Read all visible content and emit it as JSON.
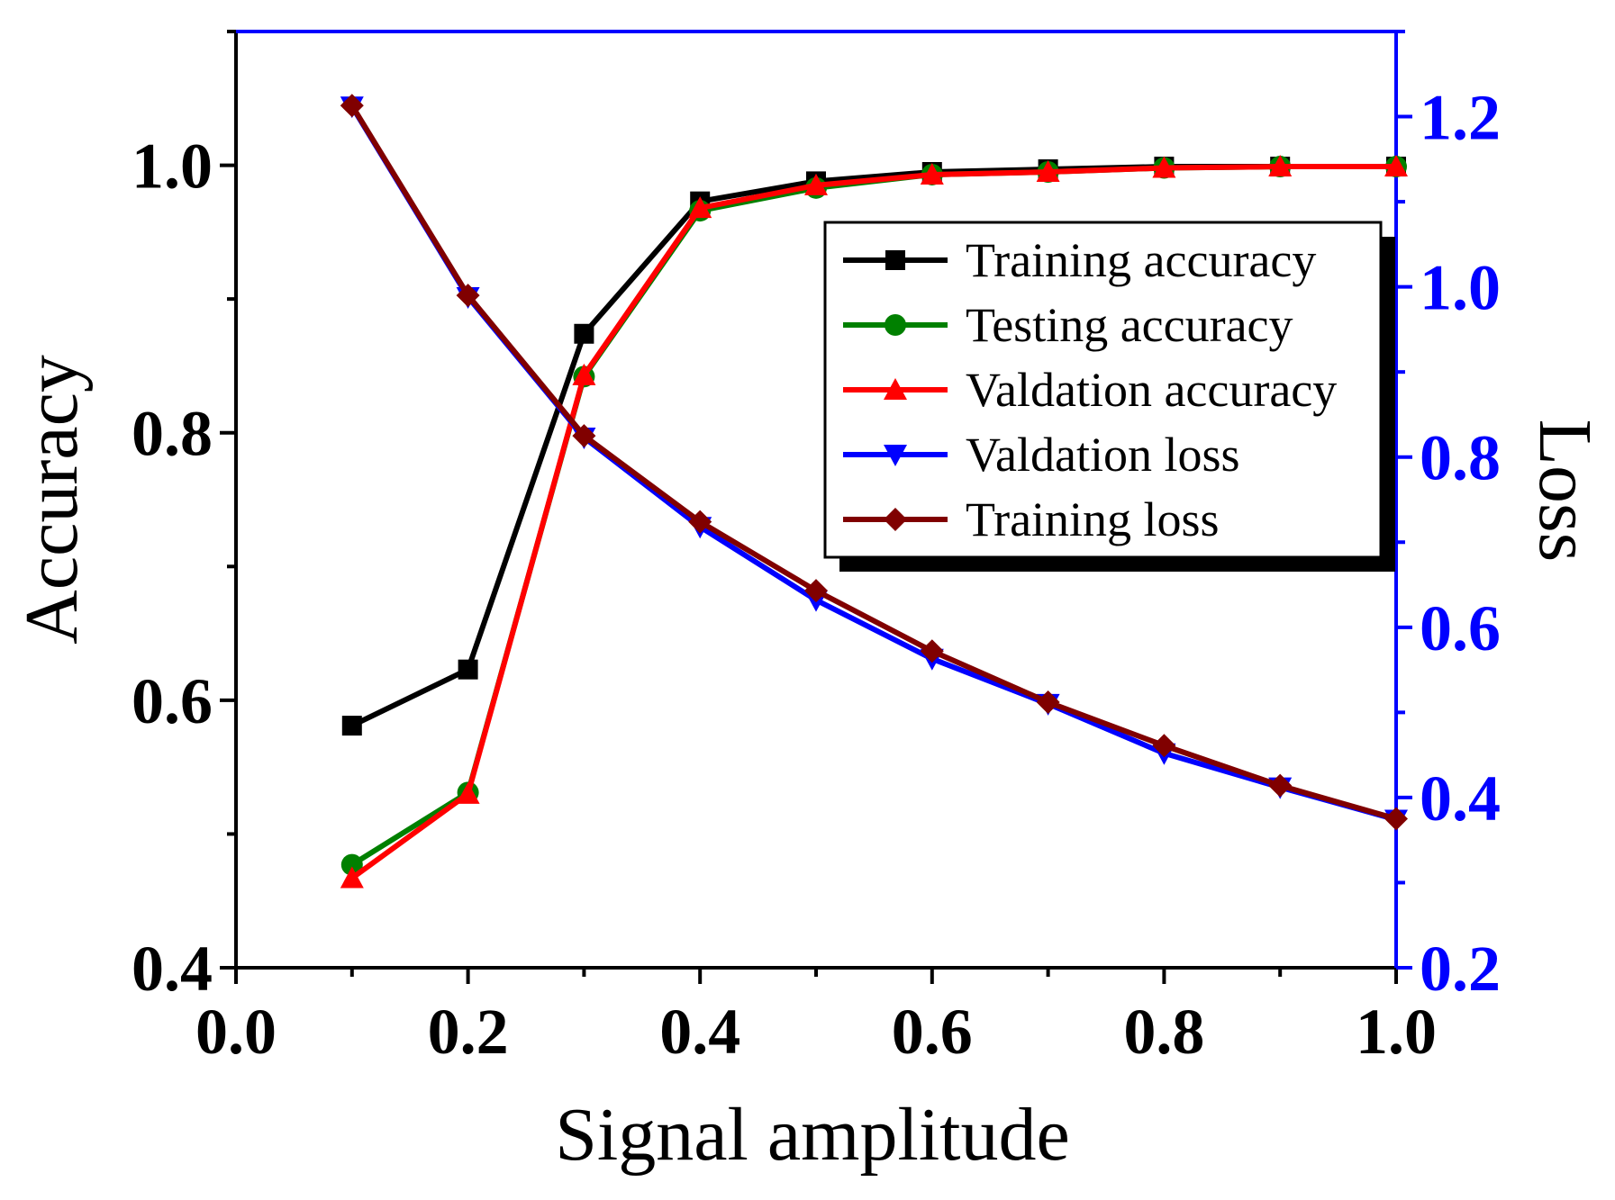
{
  "chart_data": {
    "type": "line",
    "title": "",
    "xlabel": "Signal amplitude",
    "ylabel": "Accuracy",
    "y2label": "Loss",
    "xlim": [
      0.0,
      1.0
    ],
    "ylim": [
      0.4,
      1.1
    ],
    "y2lim": [
      0.2,
      1.3
    ],
    "xticks": [
      0.0,
      0.2,
      0.4,
      0.6,
      0.8,
      1.0
    ],
    "xtick_labels": [
      "0.0",
      "0.2",
      "0.4",
      "0.6",
      "0.8",
      "1.0"
    ],
    "yticks": [
      0.4,
      0.6,
      0.8,
      1.0
    ],
    "ytick_labels": [
      "0.4",
      "0.6",
      "0.8",
      "1.0"
    ],
    "y2ticks": [
      0.2,
      0.4,
      0.6,
      0.8,
      1.0,
      1.2
    ],
    "y2tick_labels": [
      "0.2",
      "0.4",
      "0.6",
      "0.8",
      "1.0",
      "1.2"
    ],
    "x": [
      0.1,
      0.2,
      0.3,
      0.4,
      0.5,
      0.6,
      0.7,
      0.8,
      0.9,
      1.0
    ],
    "legend_position": "upper-right",
    "colors": {
      "left_axis": "#000000",
      "right_axis": "#0000ff",
      "right_tick_labels": "#0000ff"
    },
    "series": [
      {
        "name": "Training accuracy",
        "axis": "left",
        "color": "#000000",
        "marker": "square",
        "values": [
          0.581,
          0.623,
          0.874,
          0.973,
          0.988,
          0.995,
          0.997,
          0.999,
          0.999,
          0.999
        ]
      },
      {
        "name": "Testing accuracy",
        "axis": "left",
        "color": "#008000",
        "marker": "circle",
        "values": [
          0.477,
          0.531,
          0.842,
          0.966,
          0.983,
          0.993,
          0.995,
          0.998,
          0.999,
          0.999
        ]
      },
      {
        "name": "Valdation accuracy",
        "axis": "left",
        "color": "#ff0000",
        "marker": "triangle-up",
        "values": [
          0.467,
          0.53,
          0.843,
          0.968,
          0.985,
          0.993,
          0.995,
          0.998,
          0.999,
          0.999
        ]
      },
      {
        "name": "Valdation loss",
        "axis": "right",
        "color": "#0000ff",
        "marker": "triangle-down",
        "values": [
          1.212,
          0.988,
          0.823,
          0.718,
          0.632,
          0.563,
          0.51,
          0.452,
          0.412,
          0.374
        ]
      },
      {
        "name": "Training loss",
        "axis": "right",
        "color": "#800000",
        "marker": "diamond",
        "values": [
          1.213,
          0.99,
          0.825,
          0.724,
          0.643,
          0.572,
          0.512,
          0.461,
          0.414,
          0.375
        ]
      }
    ]
  }
}
